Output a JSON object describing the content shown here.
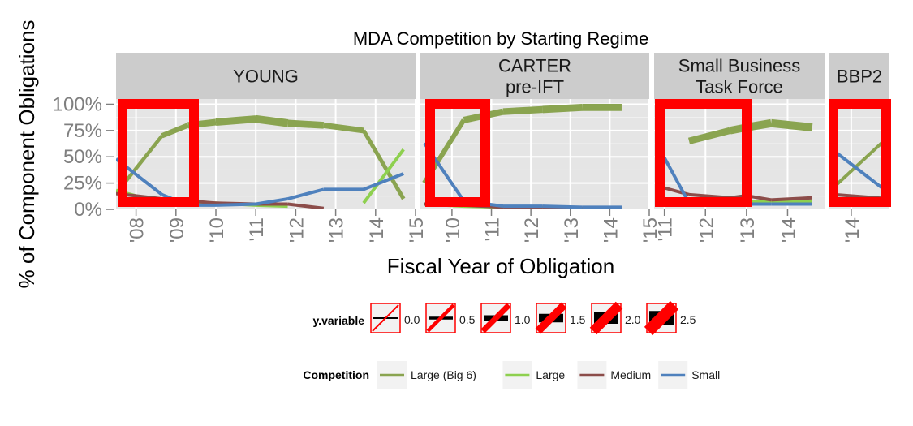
{
  "chart_data": {
    "type": "line",
    "title": "MDA Competition by Starting Regime",
    "xlabel": "Fiscal Year of Obligation",
    "ylabel": "% of Component Obligations",
    "y_ticks": [
      "0%",
      "25%",
      "50%",
      "75%",
      "100%"
    ],
    "ylim": [
      0,
      1.05
    ],
    "grid": true,
    "colors": {
      "Large (Big 6)": "#8aa450",
      "Large": "#8ed04f",
      "Medium": "#8c4d4a",
      "Small": "#4f81bd",
      "highlight": "#ff0000",
      "panel_bg": "#e5e5e5",
      "strip_bg": "#cccccc"
    },
    "facets": [
      {
        "label": "YOUNG",
        "x_ticks": [
          "'08",
          "'09",
          "'10",
          "'11",
          "'12",
          "'13",
          "'14",
          "'15"
        ],
        "xlim": [
          2007.5,
          2015
        ],
        "series": [
          {
            "name": "Large (Big 6)",
            "x": [
              2007.5,
              2008.65,
              2009.3,
              2010.0,
              2011.0,
              2011.8,
              2012.7,
              2013.7,
              2014.7
            ],
            "y": [
              0.15,
              0.7,
              0.8,
              0.83,
              0.86,
              0.82,
              0.8,
              0.75,
              0.1
            ],
            "size": [
              1.0,
              1.2,
              2.0,
              2.0,
              2.5,
              2.3,
              2.0,
              1.5,
              1.0
            ]
          },
          {
            "name": "Large",
            "x": [
              2007.5,
              2008.65,
              2009.3,
              2010.0,
              2011.0,
              2011.8,
              2013.7,
              2014.7
            ],
            "y": [
              0.18,
              0.06,
              0.05,
              0.06,
              0.04,
              0.03,
              0.06,
              0.57
            ],
            "size": [
              1,
              1,
              1,
              1,
              1,
              1,
              1,
              1
            ],
            "breaks_after": [
              5
            ]
          },
          {
            "name": "Medium",
            "x": [
              2007.5,
              2008.65,
              2009.3,
              2010.0,
              2011.0,
              2011.8,
              2012.7
            ],
            "y": [
              0.15,
              0.1,
              0.08,
              0.06,
              0.05,
              0.05,
              0.01
            ],
            "size": [
              1,
              1,
              1,
              1,
              1,
              1,
              1
            ]
          },
          {
            "name": "Small",
            "x": [
              2007.5,
              2008.65,
              2009.3,
              2010.0,
              2011.0,
              2011.8,
              2012.7,
              2013.7,
              2014.7
            ],
            "y": [
              0.48,
              0.14,
              0.04,
              0.04,
              0.05,
              0.1,
              0.19,
              0.19,
              0.34
            ],
            "size": [
              1,
              1,
              1,
              1,
              1,
              1,
              1,
              1,
              1
            ]
          }
        ]
      },
      {
        "label": "CARTER\npre-IFT",
        "x_ticks": [
          "'10",
          "'11",
          "'12",
          "'13",
          "'14",
          "'15"
        ],
        "xlim": [
          2009.2,
          2015
        ],
        "series": [
          {
            "name": "Large (Big 6)",
            "x": [
              2009.3,
              2010.3,
              2011.3,
              2012.3,
              2013.3,
              2014.3
            ],
            "y": [
              0.25,
              0.85,
              0.93,
              0.95,
              0.97,
              0.97
            ],
            "size": [
              1.0,
              2.0,
              2.0,
              2.2,
              2.2,
              2.2
            ]
          },
          {
            "name": "Large",
            "x": [
              2009.3,
              2010.3,
              2011.3,
              2012.3,
              2013.3,
              2014.3
            ],
            "y": [
              0.05,
              0.03,
              0.02,
              0.01,
              0.01,
              0.01
            ],
            "size": [
              1,
              1,
              1,
              1,
              1,
              1
            ]
          },
          {
            "name": "Medium",
            "x": [
              2009.3,
              2010.3,
              2011.3,
              2012.3,
              2013.3,
              2014.3
            ],
            "y": [
              0.05,
              0.04,
              0.02,
              0.02,
              0.01,
              0.01
            ],
            "size": [
              1,
              1,
              1,
              1,
              1,
              1
            ]
          },
          {
            "name": "Small",
            "x": [
              2009.3,
              2010.3,
              2011.3,
              2012.3,
              2013.3,
              2014.3
            ],
            "y": [
              0.63,
              0.08,
              0.03,
              0.03,
              0.02,
              0.02
            ],
            "size": [
              1,
              1,
              1,
              1,
              1,
              1
            ]
          }
        ]
      },
      {
        "label": "Small Business\nTask Force",
        "x_ticks": [
          "'11",
          "'12",
          "'13",
          "'14"
        ],
        "xlim": [
          2010.75,
          2014.9
        ],
        "series": [
          {
            "name": "Large (Big 6)",
            "x": [
              2011.6,
              2012.6,
              2013.0,
              2013.6,
              2014.6
            ],
            "y": [
              0.65,
              0.75,
              0.78,
              0.82,
              0.78
            ],
            "size": [
              2.0,
              2.2,
              2.5,
              2.5,
              2.5
            ]
          },
          {
            "name": "Large",
            "x": [
              2010.85,
              2011.6,
              2012.6,
              2013.6,
              2014.6
            ],
            "y": [
              0.06,
              0.1,
              0.08,
              0.07,
              0.08
            ],
            "size": [
              1,
              1,
              1,
              1,
              1
            ]
          },
          {
            "name": "Medium",
            "x": [
              2010.85,
              2011.6,
              2012.6,
              2013.0,
              2013.6,
              2014.6
            ],
            "y": [
              0.22,
              0.14,
              0.11,
              0.13,
              0.09,
              0.11
            ],
            "size": [
              1,
              1,
              1,
              1,
              1,
              1
            ]
          },
          {
            "name": "Small",
            "x": [
              2010.85,
              2011.6,
              2012.6,
              2013.6,
              2014.6
            ],
            "y": [
              0.6,
              0.06,
              0.05,
              0.05,
              0.05
            ],
            "size": [
              1,
              1,
              1,
              1,
              1
            ]
          }
        ]
      },
      {
        "label": "BBP2",
        "x_ticks": [
          "'14"
        ],
        "xlim": [
          2013.6,
          2014.7
        ],
        "series": [
          {
            "name": "Large (Big 6)",
            "x": [
              2013.7,
              2014.7
            ],
            "y": [
              0.22,
              0.7
            ],
            "size": [
              1,
              1
            ]
          },
          {
            "name": "Large",
            "x": [
              2013.7,
              2014.7
            ],
            "y": [
              0.09,
              0.05
            ],
            "size": [
              1,
              1
            ]
          },
          {
            "name": "Medium",
            "x": [
              2013.7,
              2014.7
            ],
            "y": [
              0.14,
              0.1
            ],
            "size": [
              1,
              1
            ]
          },
          {
            "name": "Small",
            "x": [
              2013.7,
              2014.7
            ],
            "y": [
              0.55,
              0.15
            ],
            "size": [
              1,
              1
            ]
          }
        ]
      }
    ],
    "legends": [
      {
        "title": "y.variable",
        "type": "size",
        "entries": [
          "0.0",
          "0.5",
          "1.0",
          "1.5",
          "2.0",
          "2.5"
        ],
        "values": [
          0.0,
          0.5,
          1.0,
          1.5,
          2.0,
          2.5
        ]
      },
      {
        "title": "Competition",
        "type": "color",
        "entries": [
          "Large (Big 6)",
          "Large",
          "Medium",
          "Small"
        ]
      }
    ]
  }
}
